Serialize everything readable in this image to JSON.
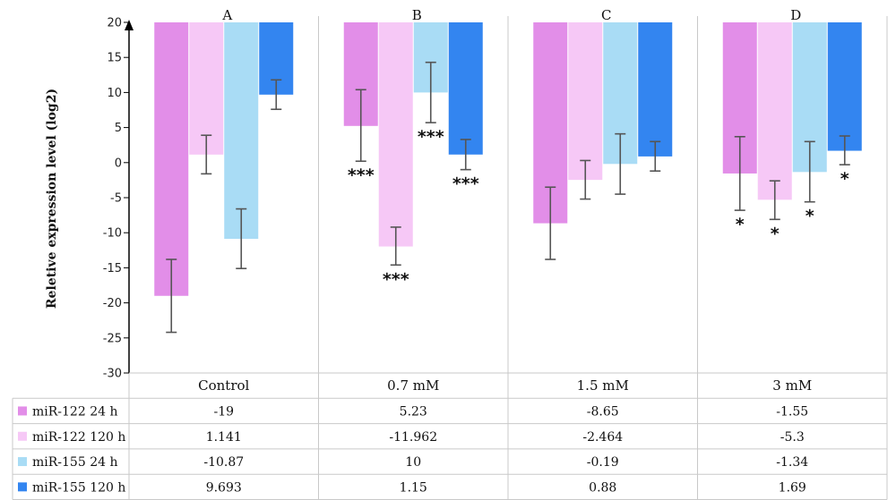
{
  "chart_data": {
    "type": "bar",
    "ylabel": "Reletive expression level (log2)",
    "ylim": [
      -30,
      20
    ],
    "yticks": [
      20,
      15,
      10,
      5,
      0,
      -5,
      -10,
      -15,
      -20,
      -25,
      -30
    ],
    "categories": [
      "Control",
      "0.7 mM",
      "1.5 mM",
      "3 mM"
    ],
    "panel_labels": [
      "A",
      "B",
      "C",
      "D"
    ],
    "series": [
      {
        "name": "miR-122 24 h",
        "color": "#e28ee8",
        "values": [
          -19,
          5.23,
          -8.65,
          -1.55
        ],
        "table_values": [
          "-19",
          "5.23",
          "-8.65",
          "-1.55"
        ],
        "err_low": [
          -24.2,
          0.2,
          -13.8,
          -6.8
        ],
        "err_high": [
          -13.8,
          10.4,
          -3.5,
          3.7
        ],
        "sig": [
          "",
          "***",
          "",
          "*"
        ]
      },
      {
        "name": "miR-122 120 h",
        "color": "#f6c8f6",
        "values": [
          1.141,
          -11.962,
          -2.464,
          -5.3
        ],
        "table_values": [
          "1.141",
          "-11.962",
          "-2.464",
          "-5.3"
        ],
        "err_low": [
          -1.6,
          -14.6,
          -5.2,
          -8.1
        ],
        "err_high": [
          3.9,
          -9.2,
          0.3,
          -2.6
        ],
        "sig": [
          "",
          "***",
          "",
          "*"
        ]
      },
      {
        "name": "miR-155 24 h",
        "color": "#a9dcf5",
        "values": [
          -10.87,
          10,
          -0.19,
          -1.34
        ],
        "table_values": [
          "-10.87",
          "10",
          "-0.19",
          "-1.34"
        ],
        "err_low": [
          -15.1,
          5.7,
          -4.5,
          -5.6
        ],
        "err_high": [
          -6.6,
          14.3,
          4.1,
          3.0
        ],
        "sig": [
          "",
          "***",
          "",
          "*"
        ]
      },
      {
        "name": "miR-155 120 h",
        "color": "#3385f0",
        "values": [
          9.693,
          1.15,
          0.88,
          1.69
        ],
        "table_values": [
          "9.693",
          "1.15",
          "0.88",
          "1.69"
        ],
        "err_low": [
          7.6,
          -1.0,
          -1.2,
          -0.3
        ],
        "err_high": [
          11.8,
          3.3,
          3.0,
          3.8
        ],
        "sig": [
          "",
          "***",
          "",
          "*"
        ]
      }
    ]
  }
}
